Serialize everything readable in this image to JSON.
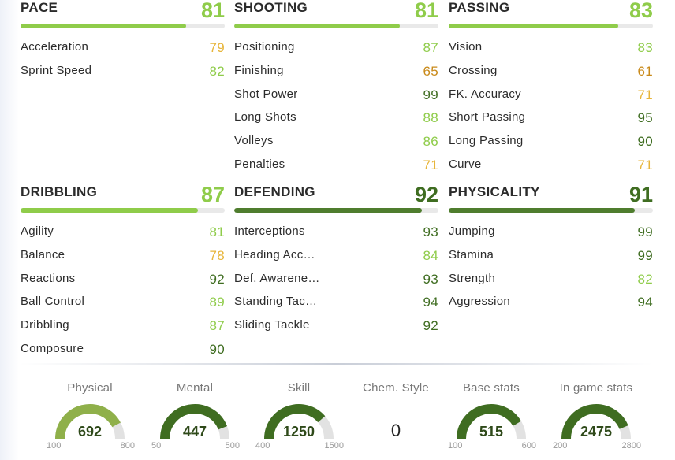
{
  "colors": {
    "gold": "#e7b53a",
    "lightgreen": "#9acd3a",
    "darkgreen": "#4f7d2e",
    "orange": "#c98a1a",
    "gauge_light": "#8fb04a",
    "gauge_dark": "#3f6d21",
    "gauge_track": "#e2e2e2"
  },
  "categories": [
    {
      "key": "pace",
      "title": "PACE",
      "value": "81",
      "bar": 0.81,
      "bar_color": "#8fcc4a",
      "value_color": "#8fcc4a",
      "attributes": [
        {
          "name": "Acceleration",
          "value": "79",
          "color": "#e7b53a"
        },
        {
          "name": "Sprint Speed",
          "value": "82",
          "color": "#8fcc4a"
        }
      ]
    },
    {
      "key": "shooting",
      "title": "SHOOTING",
      "value": "81",
      "bar": 0.81,
      "bar_color": "#8fcc4a",
      "value_color": "#8fcc4a",
      "attributes": [
        {
          "name": "Positioning",
          "value": "87",
          "color": "#8fcc4a"
        },
        {
          "name": "Finishing",
          "value": "65",
          "color": "#c98a1a"
        },
        {
          "name": "Shot Power",
          "value": "99",
          "color": "#3f6d21"
        },
        {
          "name": "Long Shots",
          "value": "88",
          "color": "#8fcc4a"
        },
        {
          "name": "Volleys",
          "value": "86",
          "color": "#8fcc4a"
        },
        {
          "name": "Penalties",
          "value": "71",
          "color": "#e7b53a"
        }
      ]
    },
    {
      "key": "passing",
      "title": "PASSING",
      "value": "83",
      "bar": 0.83,
      "bar_color": "#8fcc4a",
      "value_color": "#8fcc4a",
      "attributes": [
        {
          "name": "Vision",
          "value": "83",
          "color": "#8fcc4a"
        },
        {
          "name": "Crossing",
          "value": "61",
          "color": "#c98a1a"
        },
        {
          "name": "FK. Accuracy",
          "value": "71",
          "color": "#e7b53a"
        },
        {
          "name": "Short Passing",
          "value": "95",
          "color": "#3f6d21"
        },
        {
          "name": "Long Passing",
          "value": "90",
          "color": "#3f6d21"
        },
        {
          "name": "Curve",
          "value": "71",
          "color": "#e7b53a"
        }
      ]
    },
    {
      "key": "dribbling",
      "title": "DRIBBLING",
      "value": "87",
      "bar": 0.87,
      "bar_color": "#8fcc4a",
      "value_color": "#8fcc4a",
      "attributes": [
        {
          "name": "Agility",
          "value": "81",
          "color": "#8fcc4a"
        },
        {
          "name": "Balance",
          "value": "78",
          "color": "#e7b53a"
        },
        {
          "name": "Reactions",
          "value": "92",
          "color": "#3f6d21"
        },
        {
          "name": "Ball Control",
          "value": "89",
          "color": "#8fcc4a"
        },
        {
          "name": "Dribbling",
          "value": "87",
          "color": "#8fcc4a"
        },
        {
          "name": "Composure",
          "value": "90",
          "color": "#3f6d21"
        }
      ]
    },
    {
      "key": "defending",
      "title": "DEFENDING",
      "value": "92",
      "bar": 0.92,
      "bar_color": "#4f7d2e",
      "value_color": "#3f6d21",
      "attributes": [
        {
          "name": "Interceptions",
          "value": "93",
          "color": "#3f6d21"
        },
        {
          "name": "Heading Acc…",
          "value": "84",
          "color": "#8fcc4a"
        },
        {
          "name": "Def. Awarene…",
          "value": "93",
          "color": "#3f6d21"
        },
        {
          "name": "Standing Tac…",
          "value": "94",
          "color": "#3f6d21"
        },
        {
          "name": "Sliding Tackle",
          "value": "92",
          "color": "#3f6d21"
        }
      ]
    },
    {
      "key": "physicality",
      "title": "PHYSICALITY",
      "value": "91",
      "bar": 0.91,
      "bar_color": "#4f7d2e",
      "value_color": "#3f6d21",
      "attributes": [
        {
          "name": "Jumping",
          "value": "99",
          "color": "#3f6d21"
        },
        {
          "name": "Stamina",
          "value": "99",
          "color": "#3f6d21"
        },
        {
          "name": "Strength",
          "value": "82",
          "color": "#8fcc4a"
        },
        {
          "name": "Aggression",
          "value": "94",
          "color": "#3f6d21"
        }
      ]
    }
  ],
  "summary": [
    {
      "key": "physical",
      "label": "Physical",
      "value": "692",
      "min": "100",
      "max": "800",
      "fraction": 0.846,
      "color": "#8fb04a"
    },
    {
      "key": "mental",
      "label": "Mental",
      "value": "447",
      "min": "50",
      "max": "500",
      "fraction": 0.882,
      "color": "#3f6d21"
    },
    {
      "key": "skill",
      "label": "Skill",
      "value": "1250",
      "min": "400",
      "max": "1500",
      "fraction": 0.773,
      "color": "#3f6d21"
    },
    {
      "key": "chem",
      "label": "Chem. Style",
      "value": "0"
    },
    {
      "key": "base",
      "label": "Base stats",
      "value": "515",
      "min": "100",
      "max": "600",
      "fraction": 0.83,
      "color": "#3f6d21"
    },
    {
      "key": "ingame",
      "label": "In game stats",
      "value": "2475",
      "min": "200",
      "max": "2800",
      "fraction": 0.875,
      "color": "#3f6d21"
    }
  ]
}
